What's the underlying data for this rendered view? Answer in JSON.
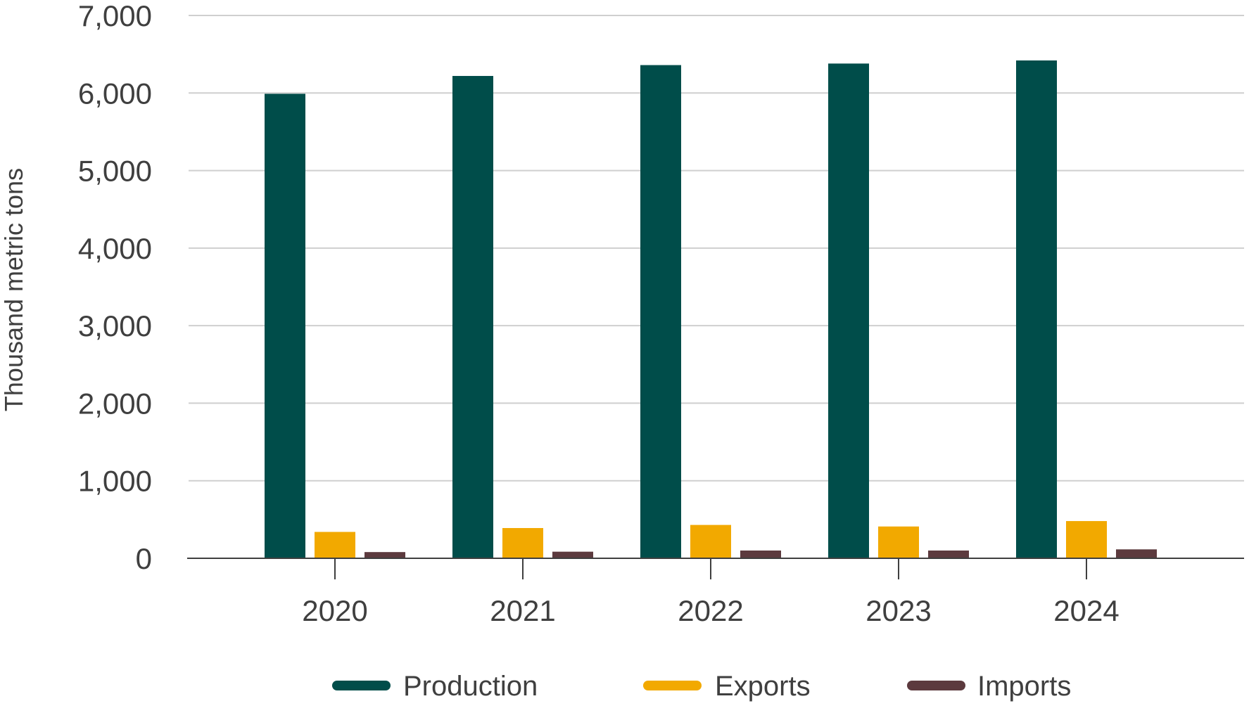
{
  "chart_data": {
    "type": "bar",
    "title": "",
    "xlabel": "",
    "ylabel": "Thousand metric tons",
    "categories": [
      "2020",
      "2021",
      "2022",
      "2023",
      "2024"
    ],
    "series": [
      {
        "name": "Production",
        "color": "#004d4a",
        "values": [
          5990,
          6220,
          6360,
          6380,
          6420
        ]
      },
      {
        "name": "Exports",
        "color": "#f2a900",
        "values": [
          340,
          390,
          430,
          410,
          480
        ]
      },
      {
        "name": "Imports",
        "color": "#5c3a3e",
        "values": [
          80,
          85,
          100,
          100,
          115
        ]
      }
    ],
    "ylim": [
      0,
      7000
    ],
    "yticks": [
      0,
      1000,
      2000,
      3000,
      4000,
      5000,
      6000,
      7000
    ],
    "ytick_labels": [
      "0",
      "1,000",
      "2,000",
      "3,000",
      "4,000",
      "5,000",
      "6,000",
      "7,000"
    ],
    "grid": true,
    "legend_position": "bottom"
  }
}
